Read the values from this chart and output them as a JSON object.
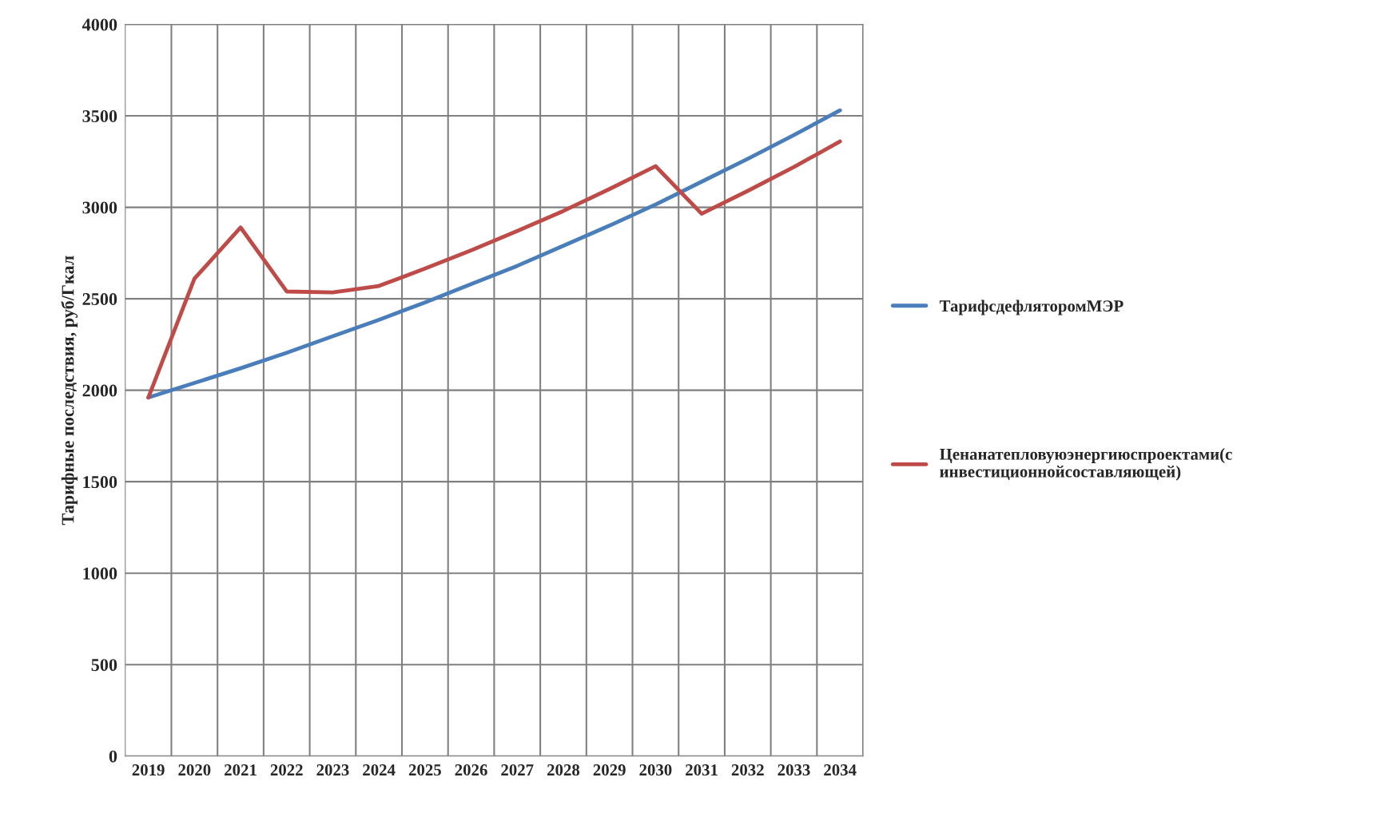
{
  "chart_data": {
    "type": "line",
    "ylabel": "Тарифные последствия, руб/Гкал",
    "categories": [
      "2019",
      "2020",
      "2021",
      "2022",
      "2023",
      "2024",
      "2025",
      "2026",
      "2027",
      "2028",
      "2029",
      "2030",
      "2031",
      "2032",
      "2033",
      "2034"
    ],
    "series": [
      {
        "name": "ТарифсдефляторомМЭР",
        "color": "#4a7ebb",
        "values": [
          1960,
          2040,
          2120,
          2205,
          2295,
          2385,
          2480,
          2580,
          2680,
          2790,
          2900,
          3015,
          3140,
          3265,
          3395,
          3530
        ]
      },
      {
        "name": "Ценанатепловуюэнергиюспроектами(с инвестиционнойсоставляющей)",
        "color": "#be4b48",
        "values": [
          1960,
          2610,
          2890,
          2540,
          2535,
          2570,
          2665,
          2765,
          2870,
          2980,
          3100,
          3225,
          2965,
          3090,
          3220,
          3360
        ]
      }
    ],
    "ylim": [
      0,
      4000
    ],
    "yticks": [
      0,
      500,
      1000,
      1500,
      2000,
      2500,
      3000,
      3500,
      4000
    ],
    "grid": true,
    "legend": "right",
    "marker": "none",
    "line_style": "solid"
  }
}
